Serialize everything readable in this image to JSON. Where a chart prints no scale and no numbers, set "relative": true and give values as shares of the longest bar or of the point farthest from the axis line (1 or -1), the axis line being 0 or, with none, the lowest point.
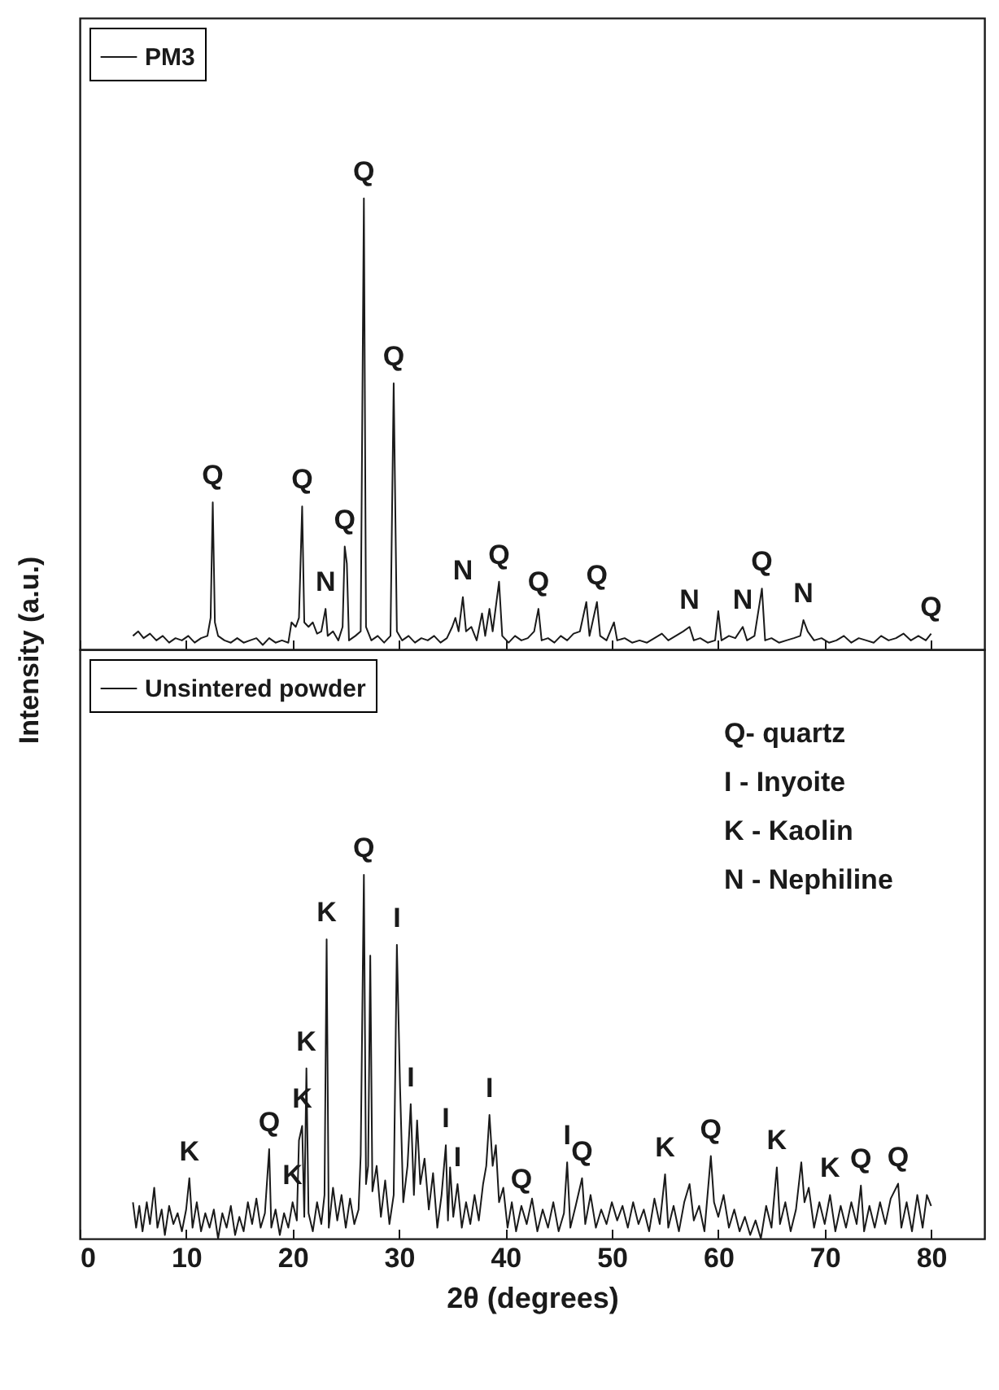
{
  "chart_data": [
    {
      "type": "line",
      "relative": true,
      "xlim": [
        0,
        85
      ],
      "xticks": [
        0,
        10,
        20,
        30,
        40,
        50,
        60,
        70,
        80
      ],
      "tick_labels": false,
      "grid": false,
      "legend": "top left",
      "marker": "none",
      "series": [
        {
          "name": "PM3",
          "color": "#1a1a1a",
          "x": [
            5.0,
            5.5,
            6.0,
            6.6,
            7.2,
            7.8,
            8.4,
            9.0,
            9.6,
            10.2,
            10.8,
            11.4,
            12.0,
            12.3,
            12.5,
            12.7,
            13.0,
            13.6,
            14.2,
            14.8,
            15.4,
            16.0,
            16.6,
            17.2,
            17.8,
            18.4,
            19.0,
            19.6,
            19.9,
            20.3,
            20.6,
            20.9,
            21.1,
            21.5,
            21.9,
            22.3,
            22.7,
            23.1,
            23.3,
            23.8,
            24.3,
            24.7,
            24.9,
            25.1,
            25.3,
            25.9,
            26.4,
            26.7,
            26.9,
            27.4,
            28.0,
            28.6,
            29.2,
            29.5,
            29.8,
            30.3,
            30.9,
            31.5,
            32.1,
            32.7,
            33.3,
            33.9,
            34.5,
            35.0,
            35.3,
            35.6,
            36.0,
            36.3,
            36.8,
            37.3,
            37.8,
            38.1,
            38.5,
            38.8,
            39.4,
            39.7,
            40.3,
            40.9,
            41.5,
            42.1,
            42.7,
            43.1,
            43.4,
            44.0,
            44.6,
            45.2,
            45.8,
            46.4,
            47.0,
            47.6,
            47.9,
            48.6,
            48.9,
            49.5,
            50.2,
            50.5,
            51.2,
            51.9,
            52.6,
            53.3,
            54.0,
            54.7,
            55.3,
            56.0,
            56.7,
            57.3,
            57.7,
            58.3,
            59.0,
            59.7,
            60.0,
            60.3,
            61.0,
            61.6,
            62.3,
            62.7,
            63.4,
            64.1,
            64.4,
            65.0,
            65.7,
            66.4,
            67.1,
            67.7,
            68.0,
            68.4,
            69.0,
            69.7,
            70.4,
            71.1,
            71.8,
            72.5,
            73.2,
            73.9,
            74.6,
            75.3,
            76.0,
            76.7,
            77.4,
            78.1,
            78.8,
            79.5,
            80.0
          ],
          "values": [
            0.03,
            0.04,
            0.025,
            0.035,
            0.02,
            0.03,
            0.015,
            0.025,
            0.02,
            0.03,
            0.015,
            0.025,
            0.03,
            0.07,
            0.326,
            0.06,
            0.03,
            0.02,
            0.015,
            0.025,
            0.015,
            0.02,
            0.025,
            0.01,
            0.025,
            0.015,
            0.02,
            0.015,
            0.06,
            0.05,
            0.07,
            0.317,
            0.06,
            0.05,
            0.06,
            0.035,
            0.04,
            0.09,
            0.03,
            0.04,
            0.02,
            0.05,
            0.228,
            0.19,
            0.02,
            0.03,
            0.04,
            1,
            0.05,
            0.02,
            0.03,
            0.015,
            0.03,
            0.59,
            0.04,
            0.02,
            0.03,
            0.015,
            0.025,
            0.02,
            0.03,
            0.015,
            0.025,
            0.05,
            0.07,
            0.04,
            0.116,
            0.04,
            0.05,
            0.02,
            0.08,
            0.03,
            0.09,
            0.04,
            0.15,
            0.03,
            0.015,
            0.03,
            0.02,
            0.025,
            0.04,
            0.09,
            0.02,
            0.025,
            0.015,
            0.03,
            0.02,
            0.035,
            0.04,
            0.105,
            0.03,
            0.105,
            0.03,
            0.02,
            0.06,
            0.02,
            0.025,
            0.015,
            0.02,
            0.015,
            0.025,
            0.035,
            0.02,
            0.03,
            0.04,
            0.05,
            0.02,
            0.025,
            0.015,
            0.02,
            0.085,
            0.02,
            0.03,
            0.025,
            0.05,
            0.02,
            0.03,
            0.135,
            0.02,
            0.025,
            0.015,
            0.02,
            0.025,
            0.03,
            0.065,
            0.04,
            0.02,
            0.025,
            0.015,
            0.02,
            0.03,
            0.015,
            0.025,
            0.02,
            0.015,
            0.03,
            0.02,
            0.025,
            0.035,
            0.02,
            0.03,
            0.02,
            0.035
          ]
        }
      ],
      "annotations": [
        {
          "text": "Q",
          "x": 12.5,
          "y": 0.326
        },
        {
          "text": "Q",
          "x": 20.9,
          "y": 0.317
        },
        {
          "text": "N",
          "x": 23.1,
          "y": 0.09
        },
        {
          "text": "Q",
          "x": 24.9,
          "y": 0.228
        },
        {
          "text": "Q",
          "x": 26.7,
          "y": 1
        },
        {
          "text": "Q",
          "x": 29.5,
          "y": 0.59
        },
        {
          "text": "N",
          "x": 36.0,
          "y": 0.116
        },
        {
          "text": "Q",
          "x": 39.4,
          "y": 0.15
        },
        {
          "text": "Q",
          "x": 43.1,
          "y": 0.09
        },
        {
          "text": "Q",
          "x": 48.6,
          "y": 0.105
        },
        {
          "text": "N",
          "x": 57.3,
          "y": 0.05
        },
        {
          "text": "N",
          "x": 62.3,
          "y": 0.05
        },
        {
          "text": "Q",
          "x": 64.1,
          "y": 0.135
        },
        {
          "text": "N",
          "x": 68.0,
          "y": 0.065
        },
        {
          "text": "Q",
          "x": 80.0,
          "y": 0.035
        }
      ]
    },
    {
      "type": "line",
      "relative": true,
      "xlim": [
        0,
        85
      ],
      "xticks": [
        0,
        10,
        20,
        30,
        40,
        50,
        60,
        70,
        80
      ],
      "tick_labels": "x",
      "grid": false,
      "legend": "top left",
      "marker": "none",
      "xlabel": "2θ (degrees)",
      "ylabel": "Intensity (a.u.)",
      "series": [
        {
          "name": "Unsintered powder",
          "color": "#1a1a1a",
          "x": [
            5.0,
            5.3,
            5.6,
            5.9,
            6.3,
            6.6,
            7.0,
            7.3,
            7.7,
            8.0,
            8.4,
            8.8,
            9.2,
            9.6,
            10.0,
            10.3,
            10.6,
            11.0,
            11.4,
            11.8,
            12.2,
            12.6,
            13.0,
            13.4,
            13.8,
            14.2,
            14.6,
            15.0,
            15.4,
            15.8,
            16.2,
            16.6,
            17.0,
            17.4,
            17.8,
            18.0,
            18.4,
            18.8,
            19.2,
            19.6,
            20.0,
            20.4,
            20.6,
            20.9,
            21.1,
            21.3,
            21.5,
            21.9,
            22.3,
            22.7,
            23.0,
            23.2,
            23.4,
            23.8,
            24.2,
            24.6,
            25.0,
            25.4,
            25.8,
            26.2,
            26.4,
            26.7,
            26.9,
            27.1,
            27.3,
            27.5,
            27.9,
            28.3,
            28.7,
            29.1,
            29.5,
            29.8,
            30.1,
            30.4,
            30.8,
            31.1,
            31.4,
            31.7,
            32.0,
            32.4,
            32.8,
            33.2,
            33.6,
            34.0,
            34.4,
            34.6,
            34.8,
            35.1,
            35.5,
            35.9,
            36.3,
            36.7,
            37.1,
            37.5,
            37.9,
            38.2,
            38.5,
            38.8,
            39.1,
            39.4,
            39.8,
            40.2,
            40.6,
            41.0,
            41.5,
            42.0,
            42.5,
            43.0,
            43.5,
            44.0,
            44.5,
            45.0,
            45.5,
            45.8,
            46.1,
            46.6,
            47.2,
            47.5,
            48.0,
            48.5,
            49.0,
            49.5,
            50.0,
            50.5,
            51.0,
            51.5,
            52.0,
            52.5,
            53.0,
            53.5,
            54.0,
            54.5,
            55.0,
            55.3,
            55.8,
            56.3,
            56.8,
            57.3,
            57.7,
            58.2,
            58.7,
            59.3,
            59.6,
            60.0,
            60.5,
            61.0,
            61.5,
            62.0,
            62.5,
            63.0,
            63.5,
            64.0,
            64.5,
            65.0,
            65.5,
            65.8,
            66.3,
            66.8,
            67.3,
            67.8,
            68.1,
            68.5,
            69.0,
            69.5,
            70.0,
            70.5,
            71.0,
            71.5,
            72.0,
            72.5,
            73.0,
            73.4,
            73.7,
            74.2,
            74.7,
            75.2,
            75.7,
            76.2,
            76.9,
            77.2,
            77.7,
            78.2,
            78.7,
            79.2,
            79.6,
            80.0
          ],
          "values": [
            0.1,
            0.03,
            0.09,
            0.02,
            0.1,
            0.04,
            0.14,
            0.03,
            0.08,
            0.01,
            0.09,
            0.04,
            0.07,
            0.02,
            0.08,
            0.166,
            0.03,
            0.1,
            0.02,
            0.07,
            0.03,
            0.08,
            0,
            0.07,
            0.03,
            0.09,
            0.01,
            0.06,
            0.02,
            0.1,
            0.04,
            0.11,
            0.03,
            0.07,
            0.246,
            0.03,
            0.08,
            0.01,
            0.07,
            0.03,
            0.1,
            0.05,
            0.27,
            0.31,
            0.06,
            0.468,
            0.07,
            0.02,
            0.1,
            0.04,
            0.12,
            0.823,
            0.03,
            0.14,
            0.05,
            0.12,
            0.03,
            0.11,
            0.04,
            0.08,
            0.23,
            1,
            0.15,
            0.2,
            0.778,
            0.13,
            0.2,
            0.06,
            0.16,
            0.04,
            0.12,
            0.808,
            0.415,
            0.1,
            0.2,
            0.37,
            0.12,
            0.325,
            0.15,
            0.22,
            0.08,
            0.18,
            0.03,
            0.12,
            0.257,
            0.05,
            0.196,
            0.06,
            0.15,
            0.03,
            0.1,
            0.04,
            0.12,
            0.05,
            0.15,
            0.2,
            0.34,
            0.2,
            0.257,
            0.1,
            0.14,
            0.03,
            0.1,
            0.02,
            0.09,
            0.04,
            0.11,
            0.02,
            0.08,
            0.03,
            0.1,
            0.02,
            0.07,
            0.21,
            0.03,
            0.09,
            0.166,
            0.04,
            0.12,
            0.03,
            0.08,
            0.04,
            0.1,
            0.05,
            0.09,
            0.03,
            0.1,
            0.04,
            0.08,
            0.02,
            0.11,
            0.04,
            0.177,
            0.03,
            0.09,
            0.02,
            0.1,
            0.15,
            0.05,
            0.09,
            0.02,
            0.227,
            0.1,
            0.06,
            0.12,
            0.03,
            0.08,
            0.02,
            0.06,
            0.01,
            0.05,
            0,
            0.09,
            0.03,
            0.196,
            0.04,
            0.1,
            0.02,
            0.08,
            0.21,
            0.1,
            0.14,
            0.03,
            0.1,
            0.04,
            0.12,
            0.02,
            0.09,
            0.03,
            0.1,
            0.04,
            0.146,
            0.02,
            0.09,
            0.03,
            0.1,
            0.04,
            0.11,
            0.151,
            0.03,
            0.1,
            0.02,
            0.12,
            0.03,
            0.12,
            0.09
          ]
        }
      ],
      "annotations": [
        {
          "text": "K",
          "x": 10.3,
          "y": 0.166
        },
        {
          "text": "Q",
          "x": 17.8,
          "y": 0.246
        },
        {
          "text": "K",
          "x": 20.9,
          "y": 0.31
        },
        {
          "text": "K",
          "x": 20.0,
          "y": 0.1
        },
        {
          "text": "K",
          "x": 21.3,
          "y": 0.468
        },
        {
          "text": "K",
          "x": 23.2,
          "y": 0.823
        },
        {
          "text": "Q",
          "x": 26.7,
          "y": 1
        },
        {
          "text": "I",
          "x": 29.8,
          "y": 0.808
        },
        {
          "text": "I",
          "x": 31.1,
          "y": 0.37
        },
        {
          "text": "I",
          "x": 34.4,
          "y": 0.257
        },
        {
          "text": "I",
          "x": 35.5,
          "y": 0.15
        },
        {
          "text": "I",
          "x": 38.5,
          "y": 0.34
        },
        {
          "text": "Q",
          "x": 41.5,
          "y": 0.09
        },
        {
          "text": "I",
          "x": 45.8,
          "y": 0.21
        },
        {
          "text": "Q",
          "x": 47.2,
          "y": 0.166
        },
        {
          "text": "K",
          "x": 55.0,
          "y": 0.177
        },
        {
          "text": "Q",
          "x": 59.3,
          "y": 0.227
        },
        {
          "text": "K",
          "x": 65.5,
          "y": 0.196
        },
        {
          "text": "K",
          "x": 70.5,
          "y": 0.12
        },
        {
          "text": "Q",
          "x": 73.4,
          "y": 0.146
        },
        {
          "text": "Q",
          "x": 76.9,
          "y": 0.151
        },
        "Q- quartz",
        "I - Inyoite",
        "K - Kaolin",
        "N - Nephiline"
      ]
    }
  ]
}
